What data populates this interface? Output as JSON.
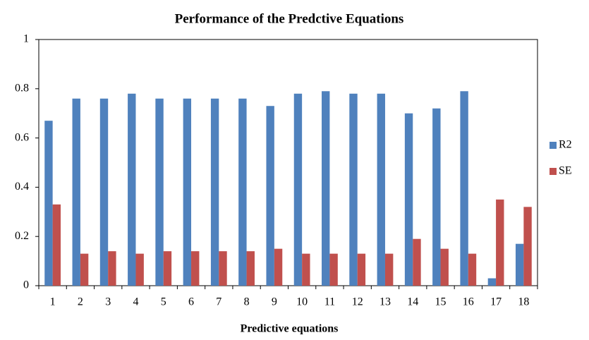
{
  "chart_data": {
    "type": "bar",
    "title": "Performance of the Predctive Equations",
    "x_label": "Predictive equations",
    "categories": [
      "1",
      "2",
      "3",
      "4",
      "5",
      "6",
      "7",
      "8",
      "9",
      "10",
      "11",
      "12",
      "13",
      "14",
      "15",
      "16",
      "17",
      "18"
    ],
    "series": [
      {
        "name": "R2",
        "color": "#4f81bd",
        "values": [
          0.67,
          0.76,
          0.76,
          0.78,
          0.76,
          0.76,
          0.76,
          0.76,
          0.73,
          0.78,
          0.79,
          0.78,
          0.78,
          0.7,
          0.72,
          0.79,
          0.03,
          0.17
        ]
      },
      {
        "name": "SE",
        "color": "#c0504d",
        "values": [
          0.33,
          0.13,
          0.14,
          0.13,
          0.14,
          0.14,
          0.14,
          0.14,
          0.15,
          0.13,
          0.13,
          0.13,
          0.13,
          0.19,
          0.15,
          0.13,
          0.35,
          0.32
        ]
      }
    ],
    "ylim": [
      0,
      1
    ],
    "yticks": [
      0,
      0.2,
      0.4,
      0.6,
      0.8,
      1
    ],
    "grid": false,
    "legend": "right"
  }
}
